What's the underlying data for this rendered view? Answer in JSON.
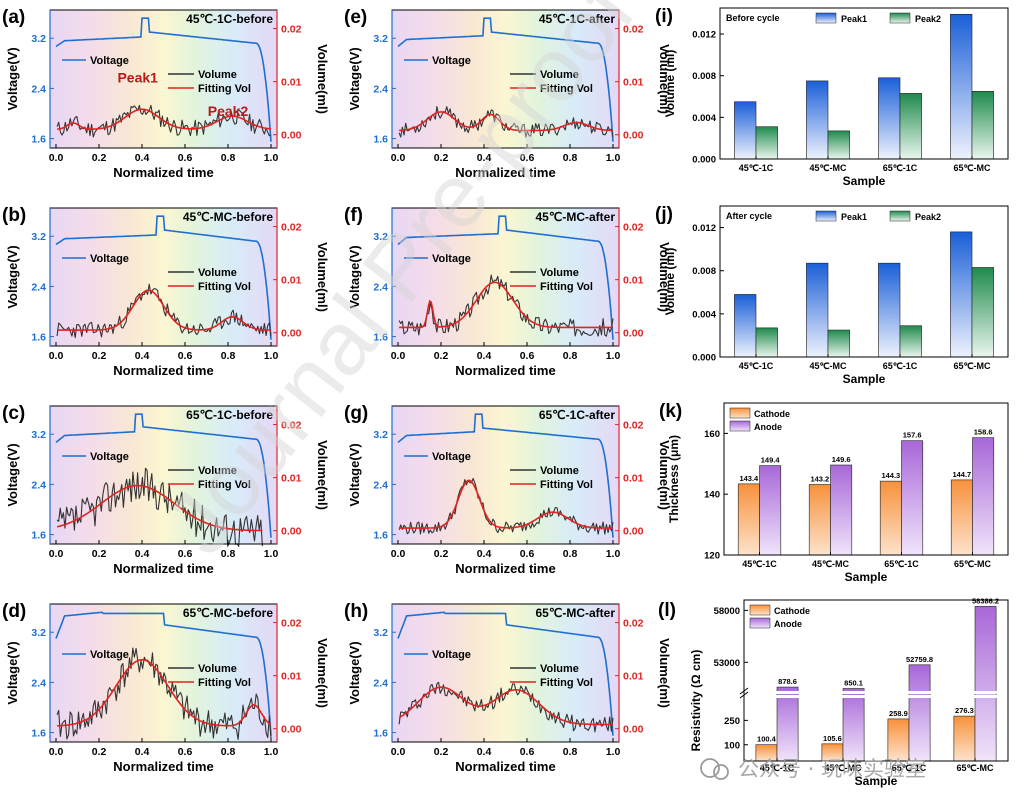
{
  "figure": {
    "watermark": "Journal Pre-proof",
    "footer_watermark": "公众号 · 玩味实验室"
  },
  "colors": {
    "voltage": "#1f6fd1",
    "fit": "#e32222",
    "raw": "#333333",
    "peak1_top": "#1a5fd8",
    "peak1_bottom": "#e8eefc",
    "peak2_top": "#1f8a4c",
    "peak2_bottom": "#e6f4ea",
    "cathode": "#f7913c",
    "anode": "#a867d8"
  },
  "chart_data": [
    {
      "id": "a",
      "type": "line",
      "panel_label": "(a)",
      "title": "45℃-1C-before",
      "xlabel": "Normalized time",
      "ylabel_left": "Voltage(V)",
      "ylabel_right": "Volume(ml)",
      "xlim": [
        0,
        1
      ],
      "ylim_left": [
        1.45,
        3.65
      ],
      "ylim_right": [
        -0.0025,
        0.0235
      ],
      "x_ticks": [
        "0.0",
        "0.2",
        "0.4",
        "0.6",
        "0.8",
        "1.0"
      ],
      "y_left_ticks": [
        "1.6",
        "2.4",
        "3.2"
      ],
      "y_right_ticks": [
        "0.00",
        "0.01",
        "0.02"
      ],
      "legend": {
        "voltage": "Voltage",
        "raw": "Volume",
        "fit": "Fitting Vol"
      },
      "annotations": [
        {
          "text": "Peak1",
          "x": 0.38,
          "y": 0.0098
        },
        {
          "text": "Peak2",
          "x": 0.8,
          "y": 0.0035
        }
      ],
      "voltage_profile": {
        "start": 3.07,
        "plateau": 3.2,
        "spike_start": 0.4,
        "spike_end": 0.43,
        "spike_v": 3.52,
        "after_drop": 3.3,
        "end": 3.12,
        "knee": 0.93,
        "final": 1.55
      },
      "fit_series": {
        "base": 0.001,
        "peaks": [
          {
            "c": 0.4,
            "a": 0.0038,
            "w": 0.11
          },
          {
            "c": 0.08,
            "a": 0.0012,
            "w": 0.04
          },
          {
            "c": 0.82,
            "a": 0.0025,
            "w": 0.1
          }
        ]
      },
      "noise": 0.0016,
      "seed": 11
    },
    {
      "id": "b",
      "type": "line",
      "panel_label": "(b)",
      "title": "45℃-MC-before",
      "xlabel": "Normalized time",
      "ylabel_left": "Voltage(V)",
      "ylabel_right": "Volume(ml)",
      "xlim": [
        0,
        1
      ],
      "ylim_left": [
        1.45,
        3.65
      ],
      "ylim_right": [
        -0.0025,
        0.0235
      ],
      "x_ticks": [
        "0.0",
        "0.2",
        "0.4",
        "0.6",
        "0.8",
        "1.0"
      ],
      "y_left_ticks": [
        "1.6",
        "2.4",
        "3.2"
      ],
      "y_right_ticks": [
        "0.00",
        "0.01",
        "0.02"
      ],
      "legend": {
        "voltage": "Voltage",
        "raw": "Volume",
        "fit": "Fitting Vol"
      },
      "voltage_profile": {
        "start": 3.07,
        "plateau": 3.2,
        "spike_start": 0.47,
        "spike_end": 0.5,
        "spike_v": 3.52,
        "after_drop": 3.3,
        "end": 3.12,
        "knee": 0.93,
        "final": 1.55
      },
      "fit_series": {
        "base": 0.0005,
        "peaks": [
          {
            "c": 0.43,
            "a": 0.0075,
            "w": 0.1
          },
          {
            "c": 0.82,
            "a": 0.0025,
            "w": 0.07
          }
        ]
      },
      "noise": 0.0015,
      "seed": 23
    },
    {
      "id": "c",
      "type": "line",
      "panel_label": "(c)",
      "title": "65℃-1C-before",
      "xlabel": "Normalized time",
      "ylabel_left": "Voltage(V)",
      "ylabel_right": "Volume(ml)",
      "xlim": [
        0,
        1
      ],
      "ylim_left": [
        1.45,
        3.65
      ],
      "ylim_right": [
        -0.0025,
        0.0235
      ],
      "x_ticks": [
        "0.0",
        "0.2",
        "0.4",
        "0.6",
        "0.8",
        "1.0"
      ],
      "y_left_ticks": [
        "1.6",
        "2.4",
        "3.2"
      ],
      "y_right_ticks": [
        "0.00",
        "0.01",
        "0.02"
      ],
      "legend": {
        "voltage": "Voltage",
        "raw": "Volume",
        "fit": "Fitting Vol"
      },
      "voltage_profile": {
        "start": 3.07,
        "plateau": 3.22,
        "spike_start": 0.37,
        "spike_end": 0.4,
        "spike_v": 3.52,
        "after_drop": 3.32,
        "end": 3.12,
        "knee": 0.93,
        "final": 1.55
      },
      "fit_series": {
        "base": 0.0,
        "peaks": [
          {
            "c": 0.38,
            "a": 0.0085,
            "w": 0.24
          }
        ]
      },
      "noise": 0.0035,
      "seed": 37,
      "cut": 0.96
    },
    {
      "id": "d",
      "type": "line",
      "panel_label": "(d)",
      "title": "65℃-MC-before",
      "xlabel": "Normalized time",
      "ylabel_left": "Voltage(V)",
      "ylabel_right": "Volume(ml)",
      "xlim": [
        0,
        1
      ],
      "ylim_left": [
        1.45,
        3.65
      ],
      "ylim_right": [
        -0.0025,
        0.0235
      ],
      "x_ticks": [
        "0.0",
        "0.2",
        "0.4",
        "0.6",
        "0.8",
        "1.0"
      ],
      "y_left_ticks": [
        "1.6",
        "2.4",
        "3.2"
      ],
      "y_right_ticks": [
        "0.00",
        "0.01",
        "0.02"
      ],
      "legend": {
        "voltage": "Voltage",
        "raw": "Volume",
        "fit": "Fitting Vol"
      },
      "voltage_profile": {
        "start": 3.1,
        "plateau": 3.5,
        "spike_start": 0.22,
        "spike_end": 0.5,
        "spike_v": 3.5,
        "after_drop": 3.32,
        "end": 3.12,
        "knee": 0.93,
        "final": 1.55
      },
      "fit_series": {
        "base": 0.0005,
        "peaks": [
          {
            "c": 0.4,
            "a": 0.0125,
            "w": 0.17
          },
          {
            "c": 0.92,
            "a": 0.004,
            "w": 0.05
          }
        ]
      },
      "noise": 0.003,
      "seed": 41
    },
    {
      "id": "e",
      "type": "line",
      "panel_label": "(e)",
      "title": "45℃-1C-after",
      "xlabel": "Normalized time",
      "ylabel_left": "Voltage(V)",
      "ylabel_right": "Volume(ml)",
      "xlim": [
        0,
        1
      ],
      "ylim_left": [
        1.45,
        3.65
      ],
      "ylim_right": [
        -0.0025,
        0.0235
      ],
      "x_ticks": [
        "0.0",
        "0.2",
        "0.4",
        "0.6",
        "0.8",
        "1.0"
      ],
      "y_left_ticks": [
        "1.6",
        "2.4",
        "3.2"
      ],
      "y_right_ticks": [
        "0.00",
        "0.01",
        "0.02"
      ],
      "legend": {
        "voltage": "Voltage",
        "raw": "Volume",
        "fit": "Fitting Vol"
      },
      "voltage_profile": {
        "start": 3.07,
        "plateau": 3.22,
        "spike_start": 0.4,
        "spike_end": 0.43,
        "spike_v": 3.52,
        "after_drop": 3.3,
        "end": 3.12,
        "knee": 0.93,
        "final": 1.55
      },
      "fit_series": {
        "base": 0.0008,
        "peaks": [
          {
            "c": 0.2,
            "a": 0.0035,
            "w": 0.09
          },
          {
            "c": 0.43,
            "a": 0.003,
            "w": 0.06
          },
          {
            "c": 0.83,
            "a": 0.0015,
            "w": 0.08
          }
        ]
      },
      "noise": 0.0013,
      "seed": 53
    },
    {
      "id": "f",
      "type": "line",
      "panel_label": "(f)",
      "title": "45℃-MC-after",
      "xlabel": "Normalized time",
      "ylabel_left": "Voltage(V)",
      "ylabel_right": "Volume(ml)",
      "xlim": [
        0,
        1
      ],
      "ylim_left": [
        1.45,
        3.65
      ],
      "ylim_right": [
        -0.0025,
        0.0235
      ],
      "x_ticks": [
        "0.0",
        "0.2",
        "0.4",
        "0.6",
        "0.8",
        "1.0"
      ],
      "y_left_ticks": [
        "1.6",
        "2.4",
        "3.2"
      ],
      "y_right_ticks": [
        "0.00",
        "0.01",
        "0.02"
      ],
      "legend": {
        "voltage": "Voltage",
        "raw": "Volume",
        "fit": "Fitting Vol"
      },
      "voltage_profile": {
        "start": 3.07,
        "plateau": 3.22,
        "spike_start": 0.47,
        "spike_end": 0.5,
        "spike_v": 3.52,
        "after_drop": 3.3,
        "end": 3.12,
        "knee": 0.93,
        "final": 1.55
      },
      "fit_series": {
        "base": 0.001,
        "peaks": [
          {
            "c": 0.15,
            "a": 0.005,
            "w": 0.018
          },
          {
            "c": 0.45,
            "a": 0.0085,
            "w": 0.12
          }
        ]
      },
      "noise": 0.0017,
      "seed": 67
    },
    {
      "id": "g",
      "type": "line",
      "panel_label": "(g)",
      "title": "65℃-1C-after",
      "xlabel": "Normalized time",
      "ylabel_left": "Voltage(V)",
      "ylabel_right": "Volume(ml)",
      "xlim": [
        0,
        1
      ],
      "ylim_left": [
        1.45,
        3.65
      ],
      "ylim_right": [
        -0.0025,
        0.0235
      ],
      "x_ticks": [
        "0.0",
        "0.2",
        "0.4",
        "0.6",
        "0.8",
        "1.0"
      ],
      "y_left_ticks": [
        "1.6",
        "2.4",
        "3.2"
      ],
      "y_right_ticks": [
        "0.00",
        "0.01",
        "0.02"
      ],
      "legend": {
        "voltage": "Voltage",
        "raw": "Volume",
        "fit": "Fitting Vol"
      },
      "voltage_profile": {
        "start": 3.07,
        "plateau": 3.22,
        "spike_start": 0.36,
        "spike_end": 0.39,
        "spike_v": 3.52,
        "after_drop": 3.3,
        "end": 3.12,
        "knee": 0.93,
        "final": 1.55
      },
      "fit_series": {
        "base": 0.0005,
        "peaks": [
          {
            "c": 0.33,
            "a": 0.009,
            "w": 0.07
          },
          {
            "c": 0.72,
            "a": 0.003,
            "w": 0.1
          }
        ]
      },
      "noise": 0.0012,
      "seed": 79
    },
    {
      "id": "h",
      "type": "line",
      "panel_label": "(h)",
      "title": "65℃-MC-after",
      "xlabel": "Normalized time",
      "ylabel_left": "Voltage(V)",
      "ylabel_right": "Volume(ml)",
      "xlim": [
        0,
        1
      ],
      "ylim_left": [
        1.45,
        3.65
      ],
      "ylim_right": [
        -0.0025,
        0.0235
      ],
      "x_ticks": [
        "0.0",
        "0.2",
        "0.4",
        "0.6",
        "0.8",
        "1.0"
      ],
      "y_left_ticks": [
        "1.6",
        "2.4",
        "3.2"
      ],
      "y_right_ticks": [
        "0.00",
        "0.01",
        "0.02"
      ],
      "legend": {
        "voltage": "Voltage",
        "raw": "Volume",
        "fit": "Fitting Vol"
      },
      "voltage_profile": {
        "start": 3.1,
        "plateau": 3.5,
        "spike_start": 0.22,
        "spike_end": 0.5,
        "spike_v": 3.5,
        "after_drop": 3.32,
        "end": 3.12,
        "knee": 0.93,
        "final": 1.55
      },
      "fit_series": {
        "base": 0.0008,
        "peaks": [
          {
            "c": 0.2,
            "a": 0.007,
            "w": 0.15
          },
          {
            "c": 0.55,
            "a": 0.0065,
            "w": 0.15
          }
        ]
      },
      "noise": 0.0015,
      "seed": 97
    },
    {
      "id": "i",
      "type": "bar",
      "panel_label": "(i)",
      "legend_title": "Before cycle",
      "xlabel": "Sample",
      "ylabel": "Volume (ml)",
      "ylim": [
        0,
        0.0145
      ],
      "y_ticks": [
        "0.000",
        "0.004",
        "0.008",
        "0.012"
      ],
      "categories": [
        "45℃-1C",
        "45℃-MC",
        "65℃-1C",
        "65℃-MC"
      ],
      "series": [
        {
          "name": "Peak1",
          "values": [
            0.0055,
            0.0075,
            0.0078,
            0.0139
          ]
        },
        {
          "name": "Peak2",
          "values": [
            0.0031,
            0.0027,
            0.0063,
            0.0065
          ]
        }
      ]
    },
    {
      "id": "j",
      "type": "bar",
      "panel_label": "(j)",
      "legend_title": "After cycle",
      "xlabel": "Sample",
      "ylabel": "Volume (ml)",
      "ylim": [
        0,
        0.014
      ],
      "y_ticks": [
        "0.000",
        "0.004",
        "0.008",
        "0.012"
      ],
      "categories": [
        "45℃-1C",
        "45℃-MC",
        "65℃-1C",
        "65℃-MC"
      ],
      "series": [
        {
          "name": "Peak1",
          "values": [
            0.0058,
            0.0087,
            0.0087,
            0.0116
          ]
        },
        {
          "name": "Peak2",
          "values": [
            0.0027,
            0.0025,
            0.0029,
            0.0083
          ]
        }
      ]
    },
    {
      "id": "k",
      "type": "bar",
      "panel_label": "(k)",
      "xlabel": "Sample",
      "ylabel": "Thickness (μm)",
      "ylim": [
        120,
        170
      ],
      "y_ticks": [
        "120",
        "140",
        "160"
      ],
      "categories": [
        "45℃-1C",
        "45℃-MC",
        "65℃-1C",
        "65℃-MC"
      ],
      "series": [
        {
          "name": "Cathode",
          "values": [
            143.4,
            143.2,
            144.3,
            144.7
          ],
          "labels": [
            "143.4",
            "143.2",
            "144.3",
            "144.7"
          ]
        },
        {
          "name": "Anode",
          "values": [
            149.4,
            149.6,
            157.6,
            158.6
          ],
          "labels": [
            "149.4",
            "149.6",
            "157.6",
            "158.6"
          ]
        }
      ]
    },
    {
      "id": "l",
      "type": "bar",
      "panel_label": "(l)",
      "xlabel": "Sample",
      "ylabel": "Resistivity (Ω cm)",
      "broken_axis": true,
      "y_ticks_low": [
        "100",
        "250"
      ],
      "y_ticks_high": [
        "53000",
        "58000"
      ],
      "ylim_low": [
        0,
        400
      ],
      "ylim_high": [
        51200,
        59000
      ],
      "categories": [
        "45℃-1C",
        "45℃-MC",
        "65℃-1C",
        "65℃-MC"
      ],
      "series": [
        {
          "name": "Cathode",
          "values": [
            100.4,
            105.6,
            258.9,
            276.3
          ],
          "labels": [
            "100.4",
            "105.6",
            "258.9",
            "276.3"
          ]
        },
        {
          "name": "Anode",
          "values": [
            878.6,
            850.1,
            52759.8,
            58386.2
          ],
          "labels": [
            "878.6",
            "850.1",
            "52759.8",
            "58386.2"
          ]
        }
      ]
    }
  ]
}
